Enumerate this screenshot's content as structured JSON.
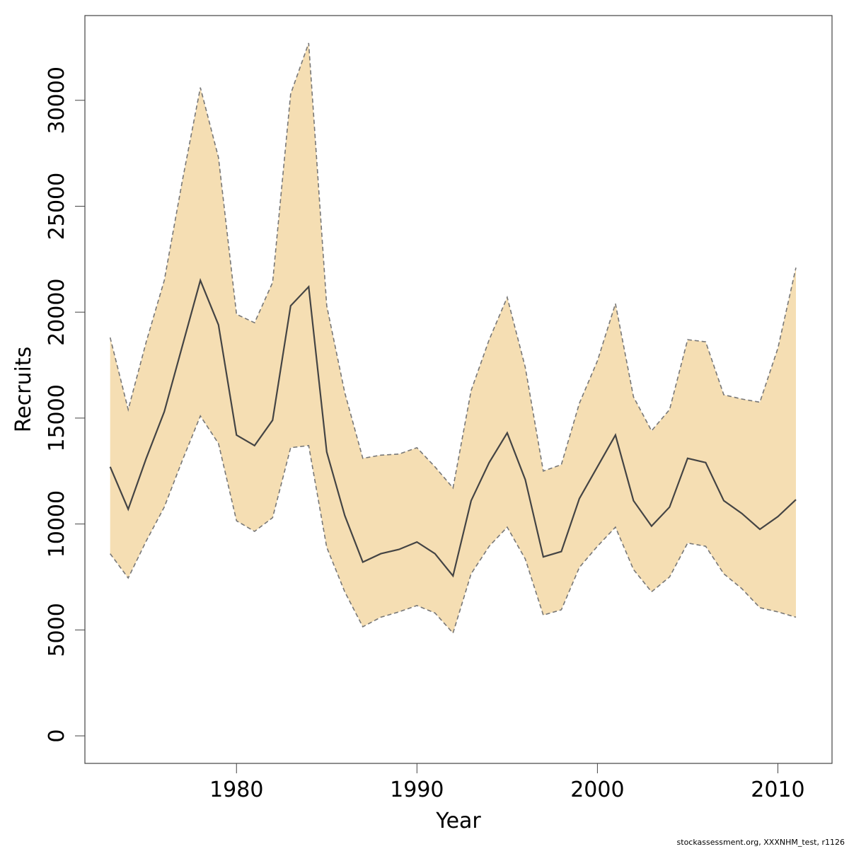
{
  "chart_data": {
    "type": "area",
    "title": "",
    "xlabel": "Year",
    "ylabel": "Recruits",
    "xlim": [
      1971.6,
      1975.0
    ],
    "ylim": [
      -1300,
      34000
    ],
    "x_ticks": [
      1980,
      1990,
      2000,
      2010
    ],
    "y_ticks": [
      0,
      5000,
      10000,
      15000,
      20000,
      25000,
      30000
    ],
    "grid": false,
    "colors": {
      "band_fill": "#f5deb3",
      "median_line": "#444444",
      "bound_line": "#777777"
    },
    "x": [
      1973,
      1974,
      1975,
      1976,
      1977,
      1978,
      1979,
      1980,
      1981,
      1982,
      1983,
      1984,
      1985,
      1986,
      1987,
      1988,
      1989,
      1990,
      1991,
      1992,
      1993,
      1994,
      1995,
      1996,
      1997,
      1998,
      1999,
      2000,
      2001,
      2002,
      2003,
      2004,
      2005,
      2006,
      2007,
      2008,
      2009,
      2010,
      2011
    ],
    "series": [
      {
        "role": "median",
        "values": [
          12700,
          10700,
          13100,
          15300,
          18400,
          21500,
          19400,
          14200,
          13700,
          14900,
          20300,
          21200,
          13400,
          10400,
          8200,
          8600,
          8800,
          9150,
          8600,
          7550,
          11100,
          12900,
          14300,
          12100,
          8450,
          8700,
          11200,
          12700,
          14200,
          11100,
          9900,
          10800,
          13100,
          12900,
          11100,
          10500,
          9750,
          10350,
          11150
        ]
      },
      {
        "role": "upper",
        "values": [
          18800,
          15400,
          18600,
          21500,
          26200,
          30600,
          27300,
          19900,
          19500,
          21400,
          30300,
          32700,
          20300,
          16200,
          13100,
          13250,
          13300,
          13600,
          12700,
          11700,
          16300,
          18700,
          20700,
          17400,
          12500,
          12800,
          15700,
          17700,
          20400,
          16000,
          14400,
          15400,
          18700,
          18600,
          16100,
          15900,
          15750,
          18300,
          22100
        ]
      },
      {
        "role": "lower",
        "values": [
          8600,
          7450,
          9200,
          10800,
          13000,
          15100,
          13800,
          10150,
          9650,
          10300,
          13600,
          13700,
          8900,
          6800,
          5150,
          5600,
          5850,
          6150,
          5800,
          4850,
          7650,
          8950,
          9850,
          8350,
          5700,
          5950,
          7950,
          8950,
          9850,
          7850,
          6800,
          7500,
          9100,
          8950,
          7650,
          6950,
          6050,
          5850,
          5600
        ]
      }
    ]
  },
  "footer_note": "stockassessment.org, XXXNHM_test, r1126"
}
